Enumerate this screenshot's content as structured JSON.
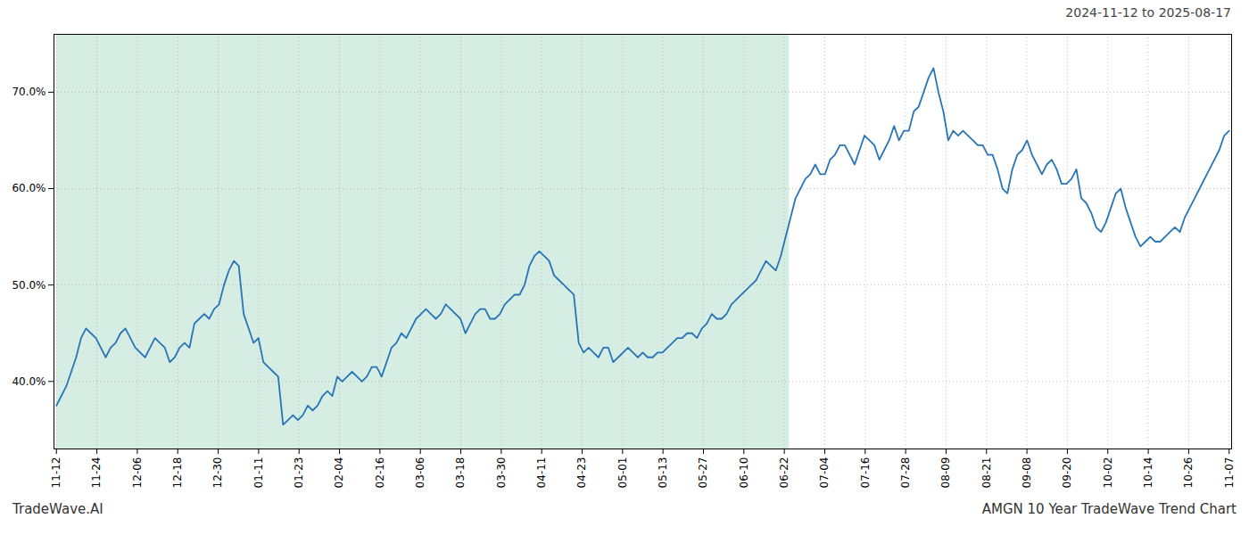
{
  "chart_data": {
    "type": "line",
    "title": "2024-11-12 to 2025-08-17",
    "annotations": [
      "TradeWave.AI",
      "AMGN 10 Year TradeWave Trend Chart"
    ],
    "color": "#2775b6",
    "grid": true,
    "line_style": "solid",
    "xlim": [
      -0.5,
      238.5
    ],
    "xticks": [
      {
        "value": 0,
        "label": "11-12"
      },
      {
        "value": 8.206897,
        "label": "11-24"
      },
      {
        "value": 16.413793,
        "label": "12-06"
      },
      {
        "value": 24.62069,
        "label": "12-18"
      },
      {
        "value": 32.827586,
        "label": "12-30"
      },
      {
        "value": 41.034483,
        "label": "01-11"
      },
      {
        "value": 49.241379,
        "label": "01-23"
      },
      {
        "value": 57.448276,
        "label": "02-04"
      },
      {
        "value": 65.655172,
        "label": "02-16"
      },
      {
        "value": 73.862069,
        "label": "03-06"
      },
      {
        "value": 82.068966,
        "label": "03-18"
      },
      {
        "value": 90.275862,
        "label": "03-30"
      },
      {
        "value": 98.482759,
        "label": "04-11"
      },
      {
        "value": 106.689655,
        "label": "04-23"
      },
      {
        "value": 114.896552,
        "label": "05-01"
      },
      {
        "value": 123.103448,
        "label": "05-13"
      },
      {
        "value": 131.310345,
        "label": "05-27"
      },
      {
        "value": 139.517241,
        "label": "06-10"
      },
      {
        "value": 147.724138,
        "label": "06-22"
      },
      {
        "value": 155.931034,
        "label": "07-04"
      },
      {
        "value": 164.137931,
        "label": "07-16"
      },
      {
        "value": 172.344828,
        "label": "07-28"
      },
      {
        "value": 180.551724,
        "label": "08-09"
      },
      {
        "value": 188.758621,
        "label": "08-21"
      },
      {
        "value": 196.965517,
        "label": "09-08"
      },
      {
        "value": 205.172414,
        "label": "09-20"
      },
      {
        "value": 213.37931,
        "label": "10-02"
      },
      {
        "value": 221.586207,
        "label": "10-14"
      },
      {
        "value": 229.793103,
        "label": "10-26"
      },
      {
        "value": 238,
        "label": "11-07"
      }
    ],
    "shaded_region": {
      "x": [
        0,
        148.75
      ],
      "color": "#d6ede3"
    },
    "ylim": [
      33,
      76
    ],
    "yticks": [
      {
        "value": 40,
        "label": "40.0%"
      },
      {
        "value": 50,
        "label": "50.0%"
      },
      {
        "value": 60,
        "label": "60.0%"
      },
      {
        "value": 70,
        "label": "70.0%"
      }
    ],
    "values": [
      37.5,
      38.5,
      39.5,
      41.0,
      42.5,
      44.5,
      45.5,
      45.0,
      44.5,
      43.5,
      42.5,
      43.5,
      44.0,
      45.0,
      45.5,
      44.5,
      43.5,
      43.0,
      42.5,
      43.5,
      44.5,
      44.0,
      43.5,
      42.0,
      42.5,
      43.5,
      44.0,
      43.5,
      46.0,
      46.5,
      47.0,
      46.5,
      47.5,
      48.0,
      50.0,
      51.5,
      52.5,
      52.0,
      47.0,
      45.5,
      44.0,
      44.5,
      42.0,
      41.5,
      41.0,
      40.5,
      35.5,
      36.0,
      36.5,
      36.0,
      36.5,
      37.5,
      37.0,
      37.5,
      38.5,
      39.0,
      38.5,
      40.5,
      40.0,
      40.5,
      41.0,
      40.5,
      40.0,
      40.5,
      41.5,
      41.5,
      40.5,
      42.0,
      43.5,
      44.0,
      45.0,
      44.5,
      45.5,
      46.5,
      47.0,
      47.5,
      47.0,
      46.5,
      47.0,
      48.0,
      47.5,
      47.0,
      46.5,
      45.0,
      46.0,
      47.0,
      47.5,
      47.5,
      46.5,
      46.5,
      47.0,
      48.0,
      48.5,
      49.0,
      49.0,
      50.0,
      52.0,
      53.0,
      53.5,
      53.0,
      52.5,
      51.0,
      50.5,
      50.0,
      49.5,
      49.0,
      44.0,
      43.0,
      43.5,
      43.0,
      42.5,
      43.5,
      43.5,
      42.0,
      42.5,
      43.0,
      43.5,
      43.0,
      42.5,
      43.0,
      42.5,
      42.5,
      43.0,
      43.0,
      43.5,
      44.0,
      44.5,
      44.5,
      45.0,
      45.0,
      44.5,
      45.5,
      46.0,
      47.0,
      46.5,
      46.5,
      47.0,
      48.0,
      48.5,
      49.0,
      49.5,
      50.0,
      50.5,
      51.5,
      52.5,
      52.0,
      51.5,
      53.0,
      55.0,
      57.0,
      59.0,
      60.0,
      61.0,
      61.5,
      62.5,
      61.5,
      61.5,
      63.0,
      63.5,
      64.5,
      64.5,
      63.5,
      62.5,
      64.0,
      65.5,
      65.0,
      64.5,
      63.0,
      64.0,
      65.0,
      66.5,
      65.0,
      66.0,
      66.0,
      68.0,
      68.5,
      70.0,
      71.5,
      72.5,
      70.0,
      68.0,
      65.0,
      66.0,
      65.5,
      66.0,
      65.5,
      65.0,
      64.5,
      64.5,
      63.5,
      63.5,
      62.0,
      60.0,
      59.5,
      62.0,
      63.5,
      64.0,
      65.0,
      63.5,
      62.5,
      61.5,
      62.5,
      63.0,
      62.0,
      60.5,
      60.5,
      61.0,
      62.0,
      59.0,
      58.5,
      57.5,
      56.0,
      55.5,
      56.5,
      58.0,
      59.5,
      60.0,
      58.0,
      56.5,
      55.0,
      54.0,
      54.5,
      55.0,
      54.5,
      54.5,
      55.0,
      55.5,
      56.0,
      55.5,
      57.0,
      58.0,
      59.0,
      60.0,
      61.0,
      62.0,
      63.0,
      64.0,
      65.5,
      66.0
    ]
  }
}
